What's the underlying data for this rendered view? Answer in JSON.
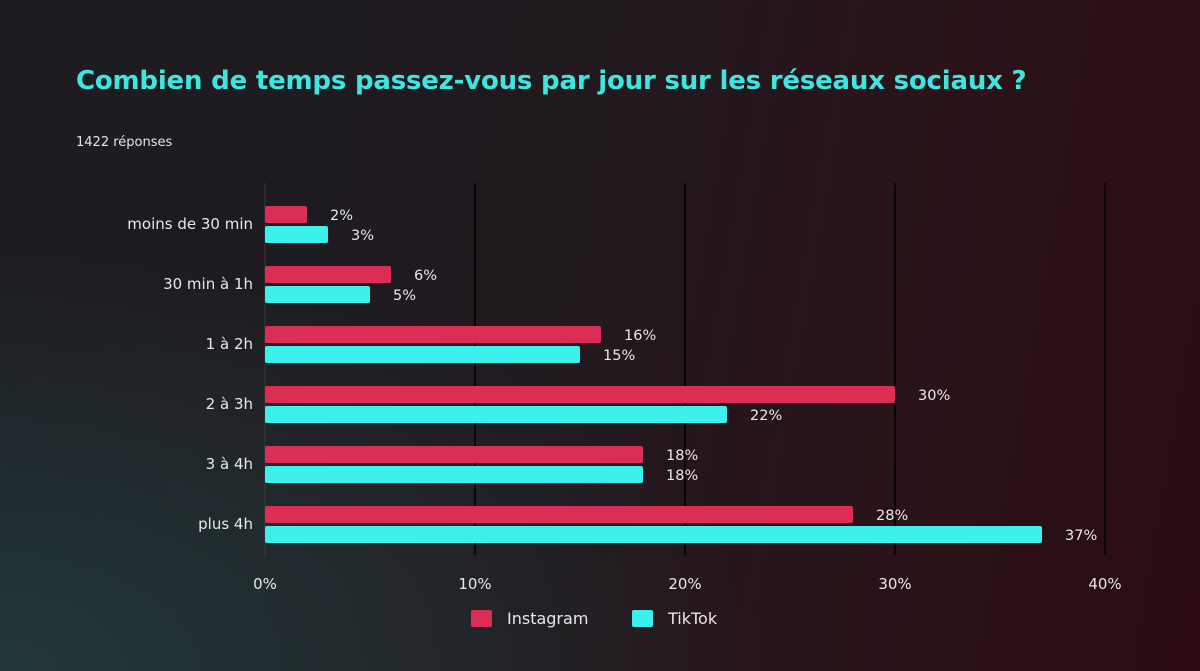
{
  "chart_data": {
    "type": "bar",
    "orientation": "horizontal",
    "title": "Combien de temps passez-vous par jour sur les réseaux sociaux ?",
    "subtitle": "1422 réponses",
    "categories": [
      "moins de 30 min",
      "30 min à 1h",
      "1 à 2h",
      "2 à 3h",
      "3 à 4h",
      "plus 4h"
    ],
    "series": [
      {
        "name": "Instagram",
        "color": "#dc2d55",
        "values": [
          2,
          6,
          16,
          30,
          18,
          28
        ]
      },
      {
        "name": "TikTok",
        "color": "#3cf0eb",
        "values": [
          3,
          5,
          15,
          22,
          18,
          37
        ]
      }
    ],
    "xlim": [
      0,
      40
    ],
    "xticks": [
      "0%",
      "10%",
      "20%",
      "30%",
      "40%"
    ],
    "value_suffix": "%",
    "grid": "vertical",
    "legend": "bottom-center"
  }
}
